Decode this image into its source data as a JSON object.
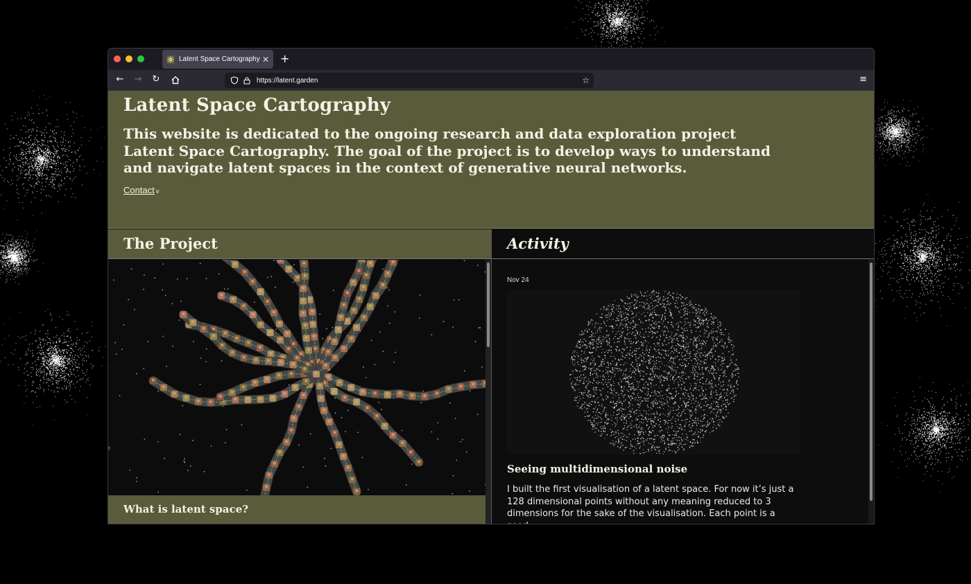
{
  "browser": {
    "tab_title": "Latent Space Cartography",
    "new_tab_icon": "plus-icon",
    "url": "https://latent.garden"
  },
  "header": {
    "title": "Latent Space Cartography",
    "intro": "This website is dedicated to the ongoing research and data exploration project Latent Space Cartography. The goal of the project is to develop ways to understand and navigate latent spaces in the context of generative neural networks.",
    "contact_label": "Contact",
    "contact_chevron": "v"
  },
  "project": {
    "heading": "The Project",
    "subheading": "What is latent space?"
  },
  "activity": {
    "heading": "Activity",
    "date": "Nov 24",
    "post_title": "Seeing multidimensional noise",
    "post_body": "I built the first visualisation of a latent space. For now it’s just a 128 dimensional points without any meaning reduced to 3 dimensions for the sake of the visualisation. Each point is a seed"
  },
  "colors": {
    "olive": "#5a5b3a",
    "page_bg": "#0d0d0d",
    "accent_line": "#2ad6a0"
  }
}
